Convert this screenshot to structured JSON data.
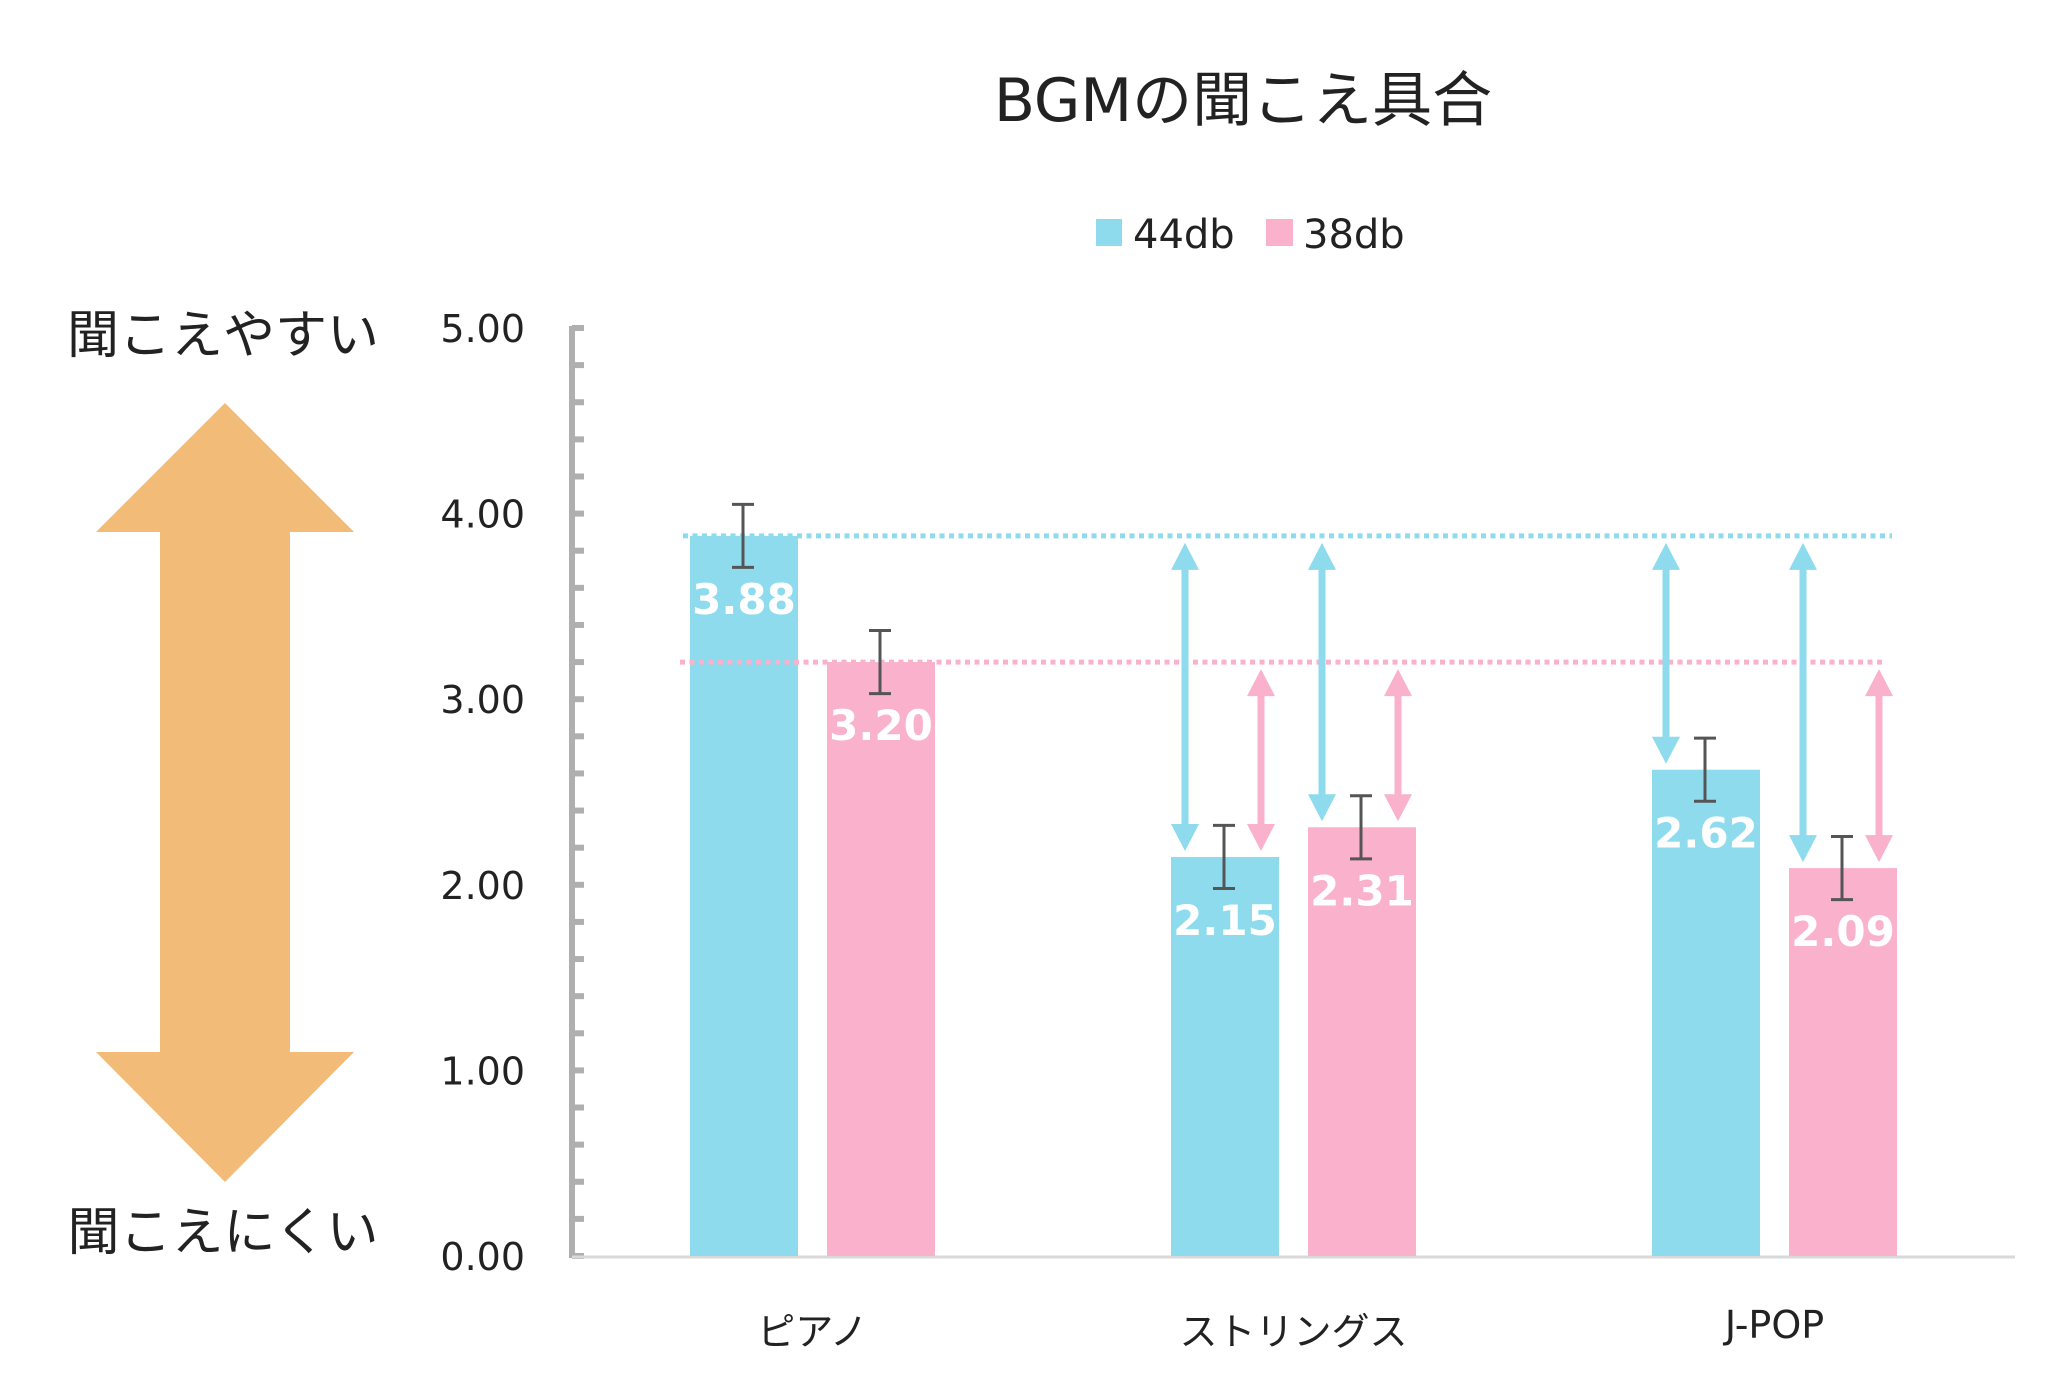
{
  "chart_data": {
    "type": "bar",
    "title": "BGMの聞こえ具合",
    "categories": [
      "ピアノ",
      "ストリングス",
      "J-POP"
    ],
    "series": [
      {
        "name": "44db",
        "color": "#8EDBEE",
        "values": [
          3.88,
          2.15,
          2.62
        ],
        "error": [
          0.17,
          0.17,
          0.17
        ],
        "value_labels": [
          "3.88",
          "2.15",
          "2.62"
        ]
      },
      {
        "name": "38db",
        "color": "#F9B1CC",
        "values": [
          3.2,
          2.31,
          2.09
        ],
        "error": [
          0.17,
          0.17,
          0.17
        ],
        "value_labels": [
          "3.20",
          "2.31",
          "2.09"
        ]
      }
    ],
    "ylim": [
      0,
      5
    ],
    "yticks": [
      "0.00",
      "1.00",
      "2.00",
      "3.00",
      "4.00",
      "5.00"
    ],
    "ytick_values": [
      0,
      1,
      2,
      3,
      4,
      5
    ],
    "minor_tick_step": 0.2,
    "xlabel": "",
    "ylabel": "",
    "legend_position": "top-center",
    "grid": false,
    "reference_lines": [
      {
        "series": "44db",
        "value": 3.88,
        "style": "dotted",
        "color": "#8EDBEE"
      },
      {
        "series": "38db",
        "value": 3.2,
        "style": "dotted",
        "color": "#F9B1CC"
      }
    ],
    "difference_arrows": [
      {
        "from_series": "44db",
        "category": "ストリングス",
        "target_series": "44db"
      },
      {
        "from_series": "38db",
        "category": "ストリングス",
        "target_series": "44db"
      },
      {
        "from_series": "44db",
        "category": "ストリングス",
        "target_series": "38db"
      },
      {
        "from_series": "38db",
        "category": "ストリングス",
        "target_series": "38db"
      },
      {
        "from_series": "44db",
        "category": "J-POP",
        "target_series": "44db"
      },
      {
        "from_series": "44db",
        "category": "J-POP",
        "target_series": "38db"
      },
      {
        "from_series": "38db",
        "category": "J-POP",
        "target_series": "38db"
      }
    ],
    "scale_annotation": {
      "top_label": "聞こえやすい",
      "bottom_label": "聞こえにくい",
      "arrow_color": "#F2BB78"
    }
  },
  "colors": {
    "text": "#222222",
    "axis": "#AFAFAF",
    "baseline": "#D9D9D9",
    "error_bar": "#555555",
    "value_label": "#FFFFFF"
  }
}
